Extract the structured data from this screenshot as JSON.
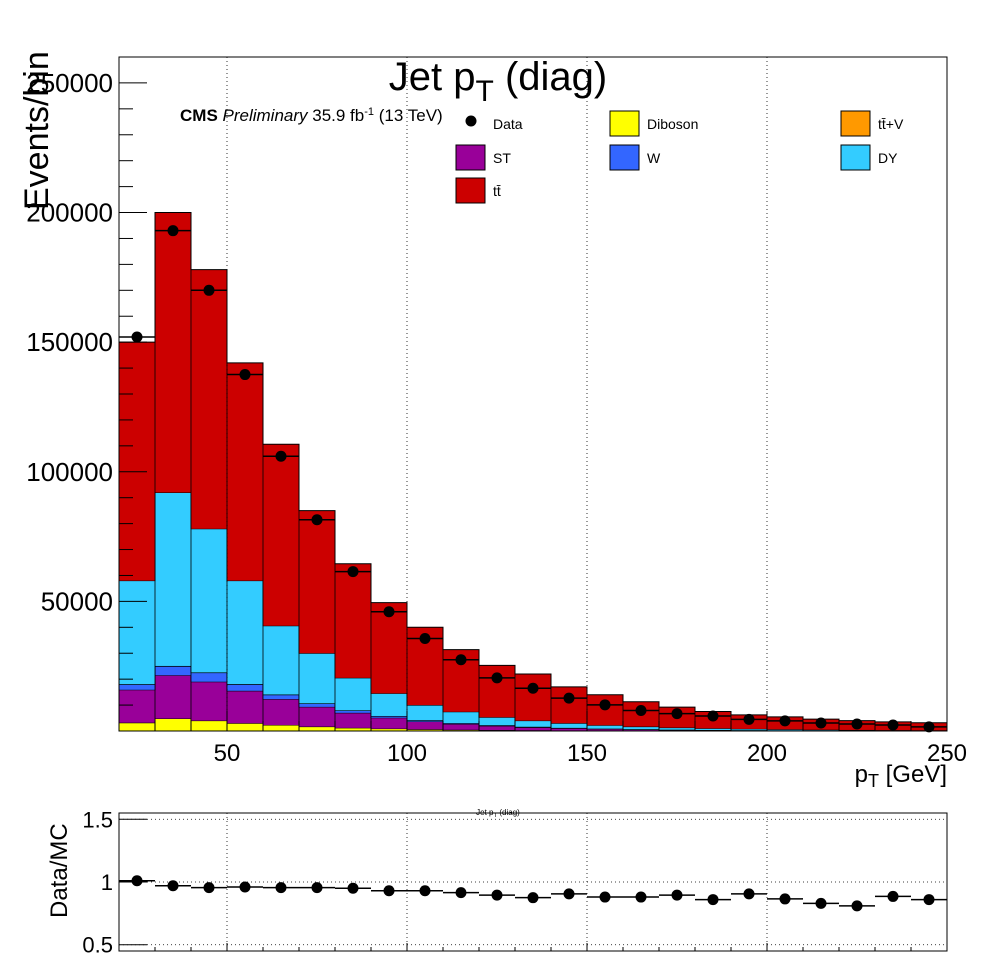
{
  "chart_data": [
    {
      "type": "bar",
      "stacked": true,
      "title": "Jet p",
      "title_subscript": "T",
      "title_suffix": " (diag)",
      "xlabel": "p",
      "xlabel_subscript": "T",
      "xlabel_suffix": " [GeV]",
      "ylabel": "Events/bin",
      "xlim": [
        20,
        250
      ],
      "ylim": [
        0,
        260000
      ],
      "x_ticks": [
        50,
        100,
        150,
        200,
        250
      ],
      "y_ticks": [
        50000,
        100000,
        150000,
        200000,
        250000
      ],
      "x_tick_labels": [
        "50",
        "100",
        "150",
        "200",
        "250"
      ],
      "y_tick_labels": [
        "50000",
        "100000",
        "150000",
        "200000",
        "250000"
      ],
      "grid": "vertical dotted",
      "cms_label": "CMS",
      "preliminary": "Preliminary",
      "lumi": "35.9 fb",
      "lumi_exp": "-1",
      "energy": " (13 TeV)",
      "bin_edges": [
        20,
        30,
        40,
        50,
        60,
        70,
        80,
        90,
        100,
        110,
        120,
        130,
        140,
        150,
        160,
        170,
        180,
        190,
        200,
        210,
        220,
        230,
        240,
        250
      ],
      "series": [
        {
          "name": "Diboson",
          "color": "#ffff00",
          "values": [
            3200,
            4800,
            4000,
            3000,
            2300,
            1700,
            1200,
            900,
            650,
            480,
            360,
            270,
            200,
            150,
            115,
            90,
            70,
            55,
            45,
            35,
            30,
            25,
            20
          ]
        },
        {
          "name": "ST",
          "color": "#990099",
          "values": [
            12700,
            16700,
            15000,
            12500,
            10000,
            7600,
            5800,
            4200,
            3000,
            2200,
            1600,
            1150,
            850,
            650,
            480,
            360,
            270,
            210,
            160,
            120,
            95,
            75,
            60
          ]
        },
        {
          "name": "W",
          "color": "#3366ff",
          "values": [
            2100,
            3500,
            3500,
            2500,
            1700,
            1300,
            900,
            650,
            480,
            350,
            260,
            190,
            140,
            100,
            75,
            55,
            45,
            35,
            25,
            20,
            15,
            12,
            10
          ]
        },
        {
          "name": "tt̄+V",
          "color": "#ff9900",
          "values": [
            60,
            90,
            90,
            80,
            70,
            60,
            50,
            40,
            30,
            25,
            20,
            15,
            12,
            10,
            8,
            6,
            5,
            4,
            3,
            3,
            2,
            2,
            2
          ]
        },
        {
          "name": "DY",
          "color": "#33ccff",
          "values": [
            39940,
            66910,
            55410,
            39920,
            26530,
            19340,
            12550,
            8710,
            5840,
            4350,
            3060,
            2375,
            1800,
            1290,
            1020,
            795,
            615,
            500,
            400,
            325,
            260,
            215,
            185
          ]
        },
        {
          "name": "tt̄",
          "color": "#cc0000",
          "values": [
            92000,
            108000,
            100000,
            84000,
            70000,
            55000,
            44000,
            35000,
            30000,
            24000,
            20000,
            18000,
            14000,
            11800,
            9600,
            7900,
            6500,
            5400,
            4800,
            4100,
            3600,
            3200,
            2900
          ]
        }
      ],
      "data_series": {
        "name": "Data",
        "x": [
          25,
          35,
          45,
          55,
          65,
          75,
          85,
          95,
          105,
          115,
          125,
          135,
          145,
          155,
          165,
          175,
          185,
          195,
          205,
          215,
          225,
          235,
          245
        ],
        "values": [
          152000,
          193000,
          170000,
          137500,
          106000,
          81500,
          61500,
          46000,
          35700,
          27500,
          20500,
          16500,
          12700,
          10100,
          7900,
          6700,
          5800,
          4500,
          3900,
          3100,
          2700,
          2300,
          1600
        ]
      },
      "legend": {
        "placement": "top",
        "entries": [
          "Data",
          "Diboson",
          "tt̄+V",
          "ST",
          "W",
          "DY",
          "tt̄"
        ]
      }
    },
    {
      "type": "scatter",
      "title": "Jet p",
      "title_subscript": "T",
      "title_suffix": " (diag)",
      "ylabel": "Data/MC",
      "xlim": [
        20,
        250
      ],
      "ylim": [
        0.45,
        1.55
      ],
      "y_ticks": [
        0.5,
        1,
        1.5
      ],
      "y_tick_labels": [
        "0.5",
        "1",
        "1.5"
      ],
      "grid": "both dotted",
      "x": [
        25,
        35,
        45,
        55,
        65,
        75,
        85,
        95,
        105,
        115,
        125,
        135,
        145,
        155,
        165,
        175,
        185,
        195,
        205,
        215,
        225,
        235,
        245
      ],
      "values": [
        1.01,
        0.97,
        0.955,
        0.96,
        0.955,
        0.955,
        0.95,
        0.93,
        0.93,
        0.915,
        0.895,
        0.875,
        0.905,
        0.88,
        0.88,
        0.895,
        0.86,
        0.905,
        0.865,
        0.83,
        0.81,
        0.885,
        0.86
      ]
    }
  ]
}
